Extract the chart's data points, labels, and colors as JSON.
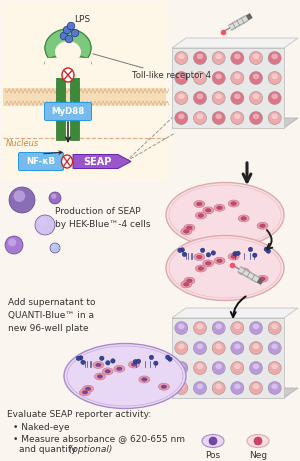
{
  "bg_color": "#faf5ee",
  "membrane_color": "#f5ddb8",
  "membrane_stripe_color": "#ddaa88",
  "receptor_green_light": "#7cc87c",
  "receptor_green_dark": "#3a8a3a",
  "lps_color": "#5577cc",
  "lps_dot_color": "#223388",
  "myd88_color": "#77bbee",
  "nfkb_color": "#77bbee",
  "seap_arrow_color": "#9955cc",
  "well_pink_light": "#eeaaaa",
  "well_pink_dark": "#dd7788",
  "well_purple_light": "#bb99dd",
  "well_purple_dark": "#9966bb",
  "dish_pink_fill": "#f9dde5",
  "dish_pink_border": "#ddaaaa",
  "dish_purple_fill": "#e8d8f5",
  "dish_purple_border": "#aa88cc",
  "cell_body": "#ee99aa",
  "cell_nuc_pink": "#cc4466",
  "cell_nuc_purple": "#7744aa",
  "seap_dot": "#334499",
  "text_color": "#333333",
  "label_lps": "LPS",
  "label_tlr4": "TLR4",
  "label_receptor": "Toll-like receptor 4",
  "label_myd88": "MyD88",
  "label_nfkb": "NF-κB",
  "label_seap": "SEAP",
  "label_nucleus": "Nucleus",
  "label_production": "Production of SEAP\nby HEK-Blue™-4 cells",
  "label_add": "Add supernatant to\nQUANTI-Blue™ in a\nnew 96-well plate",
  "label_evaluate": "Evaluate SEAP reporter activity:",
  "bullet1": "Naked-eye",
  "bullet2": "Measure absorbance @ 620-655 nm",
  "bullet3": "and quantify",
  "bullet3_italic": " (optional)",
  "pos_label": "Pos",
  "neg_label": "Neg"
}
